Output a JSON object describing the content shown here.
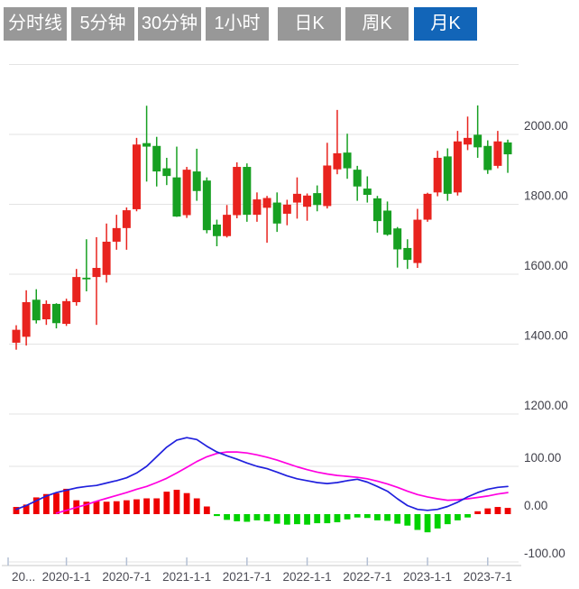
{
  "colors": {
    "tab_inactive_bg": "#989898",
    "tab_active_bg": "#1265b8",
    "tab_text": "#ffffff",
    "up": "#e8231e",
    "down": "#17a022",
    "hist_up": "#ee0000",
    "hist_down": "#00d300",
    "dif_line": "#2020dd",
    "dea_line": "#ff00e0",
    "gridline": "#e3e3e3",
    "axis_line": "#c9c9c9",
    "tick_mark": "#b4c0d4",
    "axis_text": "#41414b"
  },
  "toolbar": {
    "tabs": [
      {
        "label": "分时线",
        "active": false
      },
      {
        "label": "5分钟",
        "active": false
      },
      {
        "label": "30分钟",
        "active": false
      },
      {
        "label": "1小时",
        "active": false
      },
      {
        "label": "日K",
        "active": false
      },
      {
        "label": "周K",
        "active": false
      },
      {
        "label": "月K",
        "active": true
      }
    ]
  },
  "chart_data": {
    "type": "candlestick_with_macd",
    "period": "月K",
    "start_month": "2019-07",
    "price_axis": {
      "side": "right",
      "ticks": [
        {
          "label": "2000.00",
          "value": 2000
        },
        {
          "label": "1800.00",
          "value": 1800
        },
        {
          "label": "1600.00",
          "value": 1600
        },
        {
          "label": "1400.00",
          "value": 1400
        },
        {
          "label": "1200.00",
          "value": 1200
        }
      ]
    },
    "macd_axis": {
      "side": "right",
      "ticks": [
        {
          "label": "100.00",
          "value": 100
        },
        {
          "label": "0.00",
          "value": 0
        },
        {
          "label": "-100.00",
          "value": -100
        }
      ]
    },
    "x_axis": {
      "ticks": [
        {
          "label": "20...",
          "index": -0.8
        },
        {
          "label": "2020-1-1",
          "index": 5
        },
        {
          "label": "2020-7-1",
          "index": 11
        },
        {
          "label": "2021-1-1",
          "index": 17
        },
        {
          "label": "2021-7-1",
          "index": 23
        },
        {
          "label": "2022-1-1",
          "index": 29
        },
        {
          "label": "2022-7-1",
          "index": 35
        },
        {
          "label": "2023-1-1",
          "index": 41
        },
        {
          "label": "2023-7-1",
          "index": 47
        }
      ]
    },
    "candles_ohlc": [
      [
        1404,
        1454,
        1384,
        1441
      ],
      [
        1421,
        1554,
        1396,
        1520
      ],
      [
        1527,
        1557,
        1459,
        1468
      ],
      [
        1471,
        1525,
        1455,
        1515
      ],
      [
        1515,
        1517,
        1445,
        1460
      ],
      [
        1458,
        1530,
        1452,
        1523
      ],
      [
        1520,
        1615,
        1510,
        1592
      ],
      [
        1590,
        1700,
        1551,
        1588
      ],
      [
        1592,
        1706,
        1455,
        1618
      ],
      [
        1598,
        1745,
        1576,
        1693
      ],
      [
        1693,
        1770,
        1670,
        1732
      ],
      [
        1732,
        1791,
        1670,
        1783
      ],
      [
        1786,
        1990,
        1780,
        1971
      ],
      [
        1975,
        2082,
        1865,
        1965
      ],
      [
        1967,
        1993,
        1851,
        1894
      ],
      [
        1903,
        1933,
        1855,
        1881
      ],
      [
        1877,
        1965,
        1764,
        1765
      ],
      [
        1769,
        1907,
        1761,
        1899
      ],
      [
        1894,
        1959,
        1810,
        1838
      ],
      [
        1868,
        1877,
        1717,
        1726
      ],
      [
        1742,
        1756,
        1680,
        1709
      ],
      [
        1709,
        1798,
        1705,
        1770
      ],
      [
        1769,
        1920,
        1760,
        1907
      ],
      [
        1907,
        1917,
        1750,
        1770
      ],
      [
        1770,
        1834,
        1750,
        1814
      ],
      [
        1790,
        1824,
        1690,
        1818
      ],
      [
        1805,
        1834,
        1721,
        1745
      ],
      [
        1773,
        1813,
        1740,
        1799
      ],
      [
        1805,
        1877,
        1759,
        1830
      ],
      [
        1793,
        1831,
        1753,
        1825
      ],
      [
        1832,
        1854,
        1780,
        1798
      ],
      [
        1795,
        1976,
        1788,
        1911
      ],
      [
        1900,
        2070,
        1886,
        1946
      ],
      [
        1948,
        2002,
        1873,
        1903
      ],
      [
        1899,
        1910,
        1810,
        1851
      ],
      [
        1845,
        1880,
        1805,
        1827
      ],
      [
        1817,
        1824,
        1719,
        1752
      ],
      [
        1782,
        1808,
        1710,
        1713
      ],
      [
        1731,
        1735,
        1619,
        1671
      ],
      [
        1675,
        1700,
        1615,
        1641
      ],
      [
        1632,
        1787,
        1618,
        1756
      ],
      [
        1756,
        1833,
        1750,
        1830
      ],
      [
        1834,
        1953,
        1823,
        1933
      ],
      [
        1937,
        1960,
        1810,
        1830
      ],
      [
        1834,
        2010,
        1825,
        1980
      ],
      [
        1971,
        2051,
        1955,
        1990
      ],
      [
        1999,
        2083,
        1933,
        1963
      ],
      [
        1967,
        1983,
        1887,
        1898
      ],
      [
        1910,
        2010,
        1903,
        1980
      ],
      [
        1977,
        1985,
        1890,
        1943
      ]
    ],
    "macd": {
      "dif": [
        10,
        18,
        28,
        38,
        45,
        50,
        55,
        58,
        60,
        65,
        70,
        76,
        86,
        100,
        120,
        140,
        155,
        160,
        156,
        142,
        130,
        122,
        115,
        107,
        100,
        95,
        88,
        80,
        74,
        70,
        66,
        64,
        66,
        70,
        73,
        67,
        58,
        48,
        32,
        18,
        10,
        8,
        10,
        16,
        25,
        36,
        45,
        52,
        56,
        58
      ],
      "dea": [
        null,
        null,
        null,
        null,
        2,
        8,
        14,
        20,
        27,
        33,
        39,
        45,
        52,
        58,
        66,
        75,
        86,
        98,
        110,
        120,
        127,
        130,
        130,
        128,
        124,
        119,
        113,
        106,
        99,
        93,
        88,
        84,
        81,
        79,
        77,
        74,
        69,
        63,
        56,
        48,
        41,
        36,
        32,
        29,
        30,
        32,
        35,
        38,
        42,
        45
      ],
      "histogram": [
        15,
        20,
        35,
        42,
        44,
        53,
        29,
        26,
        27,
        26,
        27,
        29,
        31,
        33,
        33,
        47,
        51,
        44,
        33,
        16,
        -4,
        -12,
        -15,
        -16,
        -13,
        -15,
        -20,
        -22,
        -21,
        -22,
        -19,
        -19,
        -17,
        -11,
        -7,
        -8,
        -13,
        -14,
        -20,
        -24,
        -33,
        -38,
        -30,
        -21,
        -13,
        -7,
        6,
        12,
        15,
        13
      ]
    }
  }
}
